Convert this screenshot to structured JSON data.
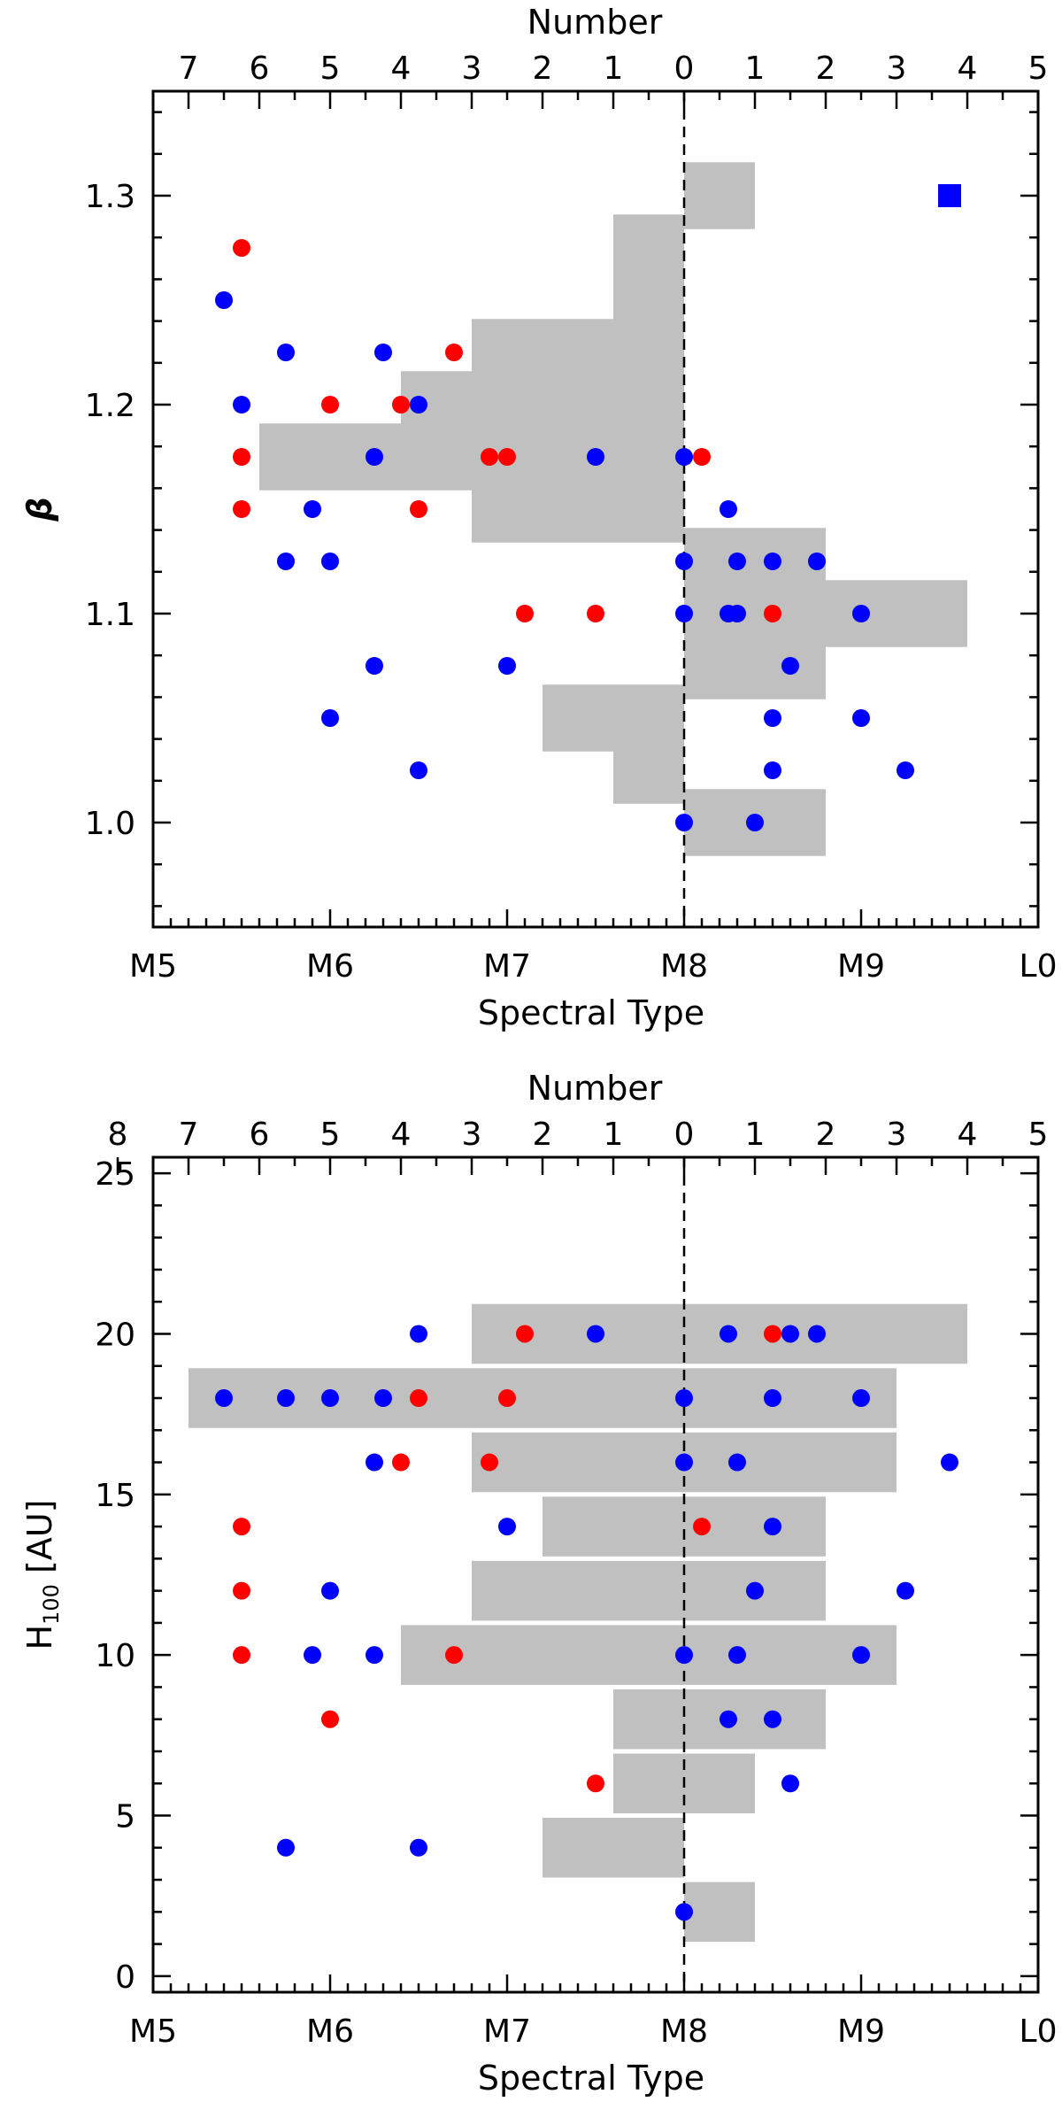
{
  "chart_data": [
    {
      "type": "scatter",
      "title": "",
      "xlabel": "Spectral Type",
      "ylabel": "β",
      "top_axis_label": "Number",
      "x_tick_labels": [
        "M5",
        "M6",
        "M7",
        "M8",
        "M9",
        "L0"
      ],
      "x_ticks": [
        5,
        6,
        7,
        8,
        9,
        10
      ],
      "top_tick_labels": [
        "7",
        "6",
        "5",
        "4",
        "3",
        "2",
        "1",
        "0",
        "1",
        "2",
        "3",
        "4",
        "5"
      ],
      "top_ticks": [
        -7,
        -6,
        -5,
        -4,
        -3,
        -2,
        -1,
        0,
        1,
        2,
        3,
        4,
        5
      ],
      "y_tick_labels": [
        "1.0",
        "1.1",
        "1.2",
        "1.3"
      ],
      "y_ticks": [
        1.0,
        1.1,
        1.2,
        1.3
      ],
      "xlim": [
        5.0,
        10.0
      ],
      "ylim": [
        0.95,
        1.35
      ],
      "marker_color": "#0000ff",
      "marker_value": [
        9.5,
        1.3
      ],
      "reference_line_x": 8.0,
      "histogram_color": "#c0c0c0",
      "histogram": [
        {
          "y": 1.3,
          "count": 1
        },
        {
          "y": 1.275,
          "count": -1
        },
        {
          "y": 1.25,
          "count": -1
        },
        {
          "y": 1.225,
          "count": -3
        },
        {
          "y": 1.2,
          "count": -4
        },
        {
          "y": 1.175,
          "count": -6
        },
        {
          "y": 1.15,
          "count": -3
        },
        {
          "y": 1.125,
          "count": 2
        },
        {
          "y": 1.1,
          "count": 4
        },
        {
          "y": 1.075,
          "count": 2
        },
        {
          "y": 1.05,
          "count": -2
        },
        {
          "y": 1.025,
          "count": -1
        },
        {
          "y": 1.0,
          "count": 2
        }
      ],
      "series": [
        {
          "color": "#ff0000",
          "points": [
            [
              5.5,
              1.275
            ],
            [
              6.0,
              1.2
            ],
            [
              6.4,
              1.2
            ],
            [
              6.7,
              1.225
            ],
            [
              5.5,
              1.175
            ],
            [
              6.9,
              1.175
            ],
            [
              7.0,
              1.175
            ],
            [
              8.1,
              1.175
            ],
            [
              5.5,
              1.15
            ],
            [
              6.5,
              1.15
            ],
            [
              7.1,
              1.1
            ],
            [
              7.5,
              1.1
            ],
            [
              8.5,
              1.1
            ]
          ]
        },
        {
          "color": "#0000ff",
          "points": [
            [
              5.4,
              1.25
            ],
            [
              5.75,
              1.225
            ],
            [
              6.3,
              1.225
            ],
            [
              5.5,
              1.2
            ],
            [
              6.5,
              1.2
            ],
            [
              6.25,
              1.175
            ],
            [
              7.5,
              1.175
            ],
            [
              8.0,
              1.175
            ],
            [
              5.9,
              1.15
            ],
            [
              8.25,
              1.15
            ],
            [
              5.75,
              1.125
            ],
            [
              6.0,
              1.125
            ],
            [
              8.0,
              1.125
            ],
            [
              8.3,
              1.125
            ],
            [
              8.5,
              1.125
            ],
            [
              8.75,
              1.125
            ],
            [
              8.0,
              1.1
            ],
            [
              8.25,
              1.1
            ],
            [
              8.3,
              1.1
            ],
            [
              9.0,
              1.1
            ],
            [
              6.25,
              1.075
            ],
            [
              7.0,
              1.075
            ],
            [
              8.6,
              1.075
            ],
            [
              6.0,
              1.05
            ],
            [
              8.5,
              1.05
            ],
            [
              9.0,
              1.05
            ],
            [
              6.5,
              1.025
            ],
            [
              8.5,
              1.025
            ],
            [
              9.25,
              1.025
            ],
            [
              8.0,
              1.0
            ],
            [
              8.4,
              1.0
            ]
          ]
        }
      ]
    },
    {
      "type": "scatter",
      "title": "",
      "xlabel": "Spectral Type",
      "ylabel": "H100 [AU]",
      "ylabel_main": "H",
      "ylabel_sub": "100",
      "ylabel_rest": " [AU]",
      "top_axis_label": "Number",
      "x_tick_labels": [
        "M5",
        "M6",
        "M7",
        "M8",
        "M9",
        "L0"
      ],
      "x_ticks": [
        5,
        6,
        7,
        8,
        9,
        10
      ],
      "top_tick_labels": [
        "8",
        "7",
        "6",
        "5",
        "4",
        "3",
        "2",
        "1",
        "0",
        "1",
        "2",
        "3",
        "4",
        "5"
      ],
      "top_ticks": [
        -8,
        -7,
        -6,
        -5,
        -4,
        -3,
        -2,
        -1,
        0,
        1,
        2,
        3,
        4,
        5
      ],
      "y_tick_labels": [
        "0",
        "5",
        "10",
        "15",
        "20",
        "25"
      ],
      "y_ticks": [
        0,
        5,
        10,
        15,
        20,
        25
      ],
      "xlim": [
        5.0,
        10.0
      ],
      "ylim": [
        -0.5,
        25.5
      ],
      "reference_line_x": 8.0,
      "histogram_color": "#c0c0c0",
      "histogram": [
        {
          "y": 20,
          "count": 4
        },
        {
          "y": 20,
          "count": -3
        },
        {
          "y": 18,
          "count": 3
        },
        {
          "y": 18,
          "count": -7
        },
        {
          "y": 16,
          "count": 3
        },
        {
          "y": 16,
          "count": -3
        },
        {
          "y": 14,
          "count": 2
        },
        {
          "y": 14,
          "count": -2
        },
        {
          "y": 12,
          "count": 2
        },
        {
          "y": 12,
          "count": -3
        },
        {
          "y": 10,
          "count": 3
        },
        {
          "y": 10,
          "count": -4
        },
        {
          "y": 8,
          "count": 2
        },
        {
          "y": 8,
          "count": -1
        },
        {
          "y": 6,
          "count": 1
        },
        {
          "y": 6,
          "count": -1
        },
        {
          "y": 4,
          "count": -2
        },
        {
          "y": 2,
          "count": 1
        }
      ],
      "series": [
        {
          "color": "#ff0000",
          "points": [
            [
              7.1,
              20
            ],
            [
              8.5,
              20
            ],
            [
              6.5,
              18
            ],
            [
              7.0,
              18
            ],
            [
              6.4,
              16
            ],
            [
              6.9,
              16
            ],
            [
              5.5,
              14
            ],
            [
              8.1,
              14
            ],
            [
              5.5,
              12
            ],
            [
              5.5,
              10
            ],
            [
              6.7,
              10
            ],
            [
              6.0,
              8
            ],
            [
              7.5,
              6
            ]
          ]
        },
        {
          "color": "#0000ff",
          "points": [
            [
              6.5,
              20
            ],
            [
              7.5,
              20
            ],
            [
              8.25,
              20
            ],
            [
              8.6,
              20
            ],
            [
              8.75,
              20
            ],
            [
              5.4,
              18
            ],
            [
              5.75,
              18
            ],
            [
              6.0,
              18
            ],
            [
              6.3,
              18
            ],
            [
              8.0,
              18
            ],
            [
              8.5,
              18
            ],
            [
              9.0,
              18
            ],
            [
              6.25,
              16
            ],
            [
              8.0,
              16
            ],
            [
              8.3,
              16
            ],
            [
              9.5,
              16
            ],
            [
              7.0,
              14
            ],
            [
              8.5,
              14
            ],
            [
              6.0,
              12
            ],
            [
              8.4,
              12
            ],
            [
              9.25,
              12
            ],
            [
              5.9,
              10
            ],
            [
              6.25,
              10
            ],
            [
              8.0,
              10
            ],
            [
              8.3,
              10
            ],
            [
              9.0,
              10
            ],
            [
              8.25,
              8
            ],
            [
              8.5,
              8
            ],
            [
              8.6,
              6
            ],
            [
              5.75,
              4
            ],
            [
              6.5,
              4
            ],
            [
              8.0,
              2
            ]
          ]
        }
      ]
    }
  ]
}
